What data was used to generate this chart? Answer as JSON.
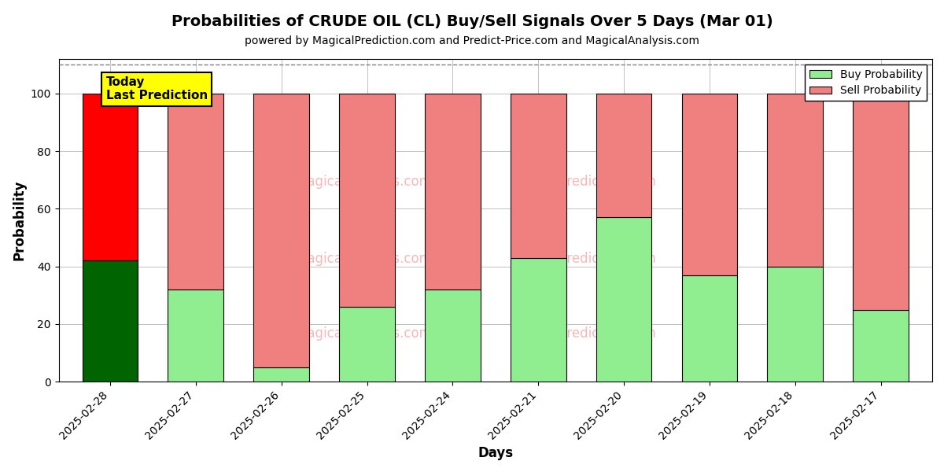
{
  "title": "Probabilities of CRUDE OIL (CL) Buy/Sell Signals Over 5 Days (Mar 01)",
  "subtitle": "powered by MagicalPrediction.com and Predict-Price.com and MagicalAnalysis.com",
  "xlabel": "Days",
  "ylabel": "Probability",
  "categories": [
    "2025-02-28",
    "2025-02-27",
    "2025-02-26",
    "2025-02-25",
    "2025-02-24",
    "2025-02-21",
    "2025-02-20",
    "2025-02-19",
    "2025-02-18",
    "2025-02-17"
  ],
  "buy_values": [
    42,
    32,
    5,
    26,
    32,
    43,
    57,
    37,
    40,
    25
  ],
  "sell_values": [
    58,
    68,
    95,
    74,
    68,
    57,
    43,
    63,
    60,
    75
  ],
  "today_buy_color": "#006400",
  "today_sell_color": "#FF0000",
  "buy_color": "#90EE90",
  "sell_color": "#F08080",
  "bar_edgecolor": "#000000",
  "annotation_text": "Today\nLast Prediction",
  "annotation_bg": "#FFFF00",
  "legend_buy": "Buy Probability",
  "legend_sell": "Sell Probability",
  "ylim": [
    0,
    112
  ],
  "yticks": [
    0,
    20,
    40,
    60,
    80,
    100
  ],
  "dashed_line_y": 110,
  "background_color": "#ffffff",
  "grid_color": "#aaaaaa",
  "title_fontsize": 14,
  "subtitle_fontsize": 10,
  "axis_label_fontsize": 12,
  "tick_fontsize": 10
}
